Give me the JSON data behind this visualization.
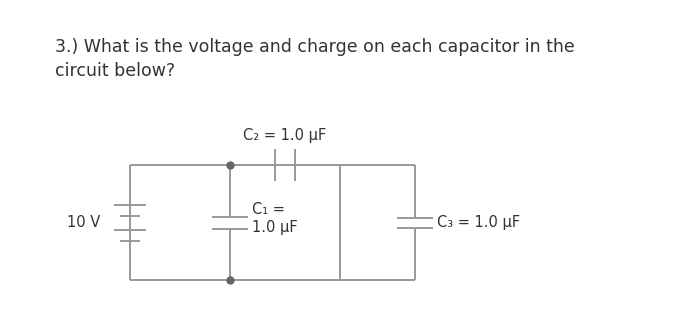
{
  "title_line1": "3.) What is the voltage and charge on each capacitor in the",
  "title_line2": "circuit below?",
  "title_fontsize": 12.5,
  "bg_color": "#ffffff",
  "circuit_color": "#999999",
  "text_color": "#333333",
  "label_C1": "C₁ =\n1.0 μF",
  "label_C2": "C₂ = 1.0 μF",
  "label_C3": "C₃ = 1.0 μF",
  "label_V": "10 V",
  "figsize": [
    7.0,
    3.25
  ],
  "dpi": 100
}
